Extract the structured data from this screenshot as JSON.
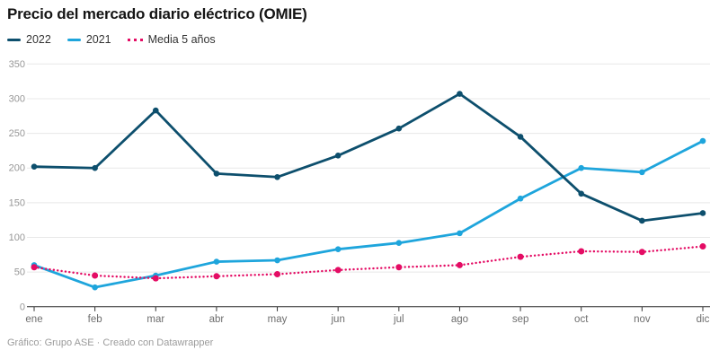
{
  "footer": {
    "credit": "Gráfico: Grupo ASE · Creado con Datawrapper"
  },
  "chart_data": {
    "type": "line",
    "title": "Precio del mercado diario eléctrico (OMIE)",
    "categories": [
      "ene",
      "feb",
      "mar",
      "abr",
      "may",
      "jun",
      "jul",
      "ago",
      "sep",
      "oct",
      "nov",
      "dic"
    ],
    "series": [
      {
        "name": "2022",
        "color": "#0d4f6d",
        "style": "solid",
        "values": [
          202,
          200,
          283,
          192,
          187,
          218,
          257,
          307,
          245,
          163,
          124,
          135
        ]
      },
      {
        "name": "2021",
        "color": "#1ea5dc",
        "style": "solid",
        "values": [
          60,
          28,
          45,
          65,
          67,
          83,
          92,
          106,
          156,
          200,
          194,
          239
        ]
      },
      {
        "name": "Media 5 años",
        "color": "#e40c64",
        "style": "dotted",
        "values": [
          57,
          45,
          41,
          44,
          47,
          53,
          57,
          60,
          72,
          80,
          79,
          87
        ]
      }
    ],
    "ylim": [
      0,
      350
    ],
    "yticks": [
      0,
      50,
      100,
      150,
      200,
      250,
      300,
      350
    ],
    "grid": "horizontal",
    "legend_position": "top-left",
    "draw_order": [
      1,
      0,
      2
    ]
  }
}
